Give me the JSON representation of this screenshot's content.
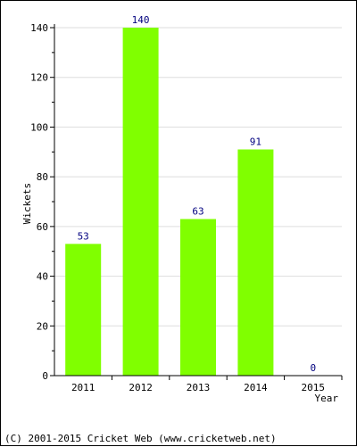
{
  "chart_data": {
    "type": "bar",
    "categories": [
      "2011",
      "2012",
      "2013",
      "2014",
      "2015"
    ],
    "values": [
      53,
      140,
      63,
      91,
      0
    ],
    "data_labels": [
      "53",
      "140",
      "63",
      "91",
      "0"
    ],
    "xlabel": "Year",
    "ylabel": "Wickets",
    "ylim": [
      0,
      140
    ],
    "yticks": [
      0,
      20,
      40,
      60,
      80,
      100,
      120,
      140
    ],
    "grid": true,
    "bar_color": "#80ff00",
    "label_color": "#00007f",
    "grid_color": "#dddddd"
  },
  "footer": {
    "copyright": "(C) 2001-2015 Cricket Web (www.cricketweb.net)"
  }
}
